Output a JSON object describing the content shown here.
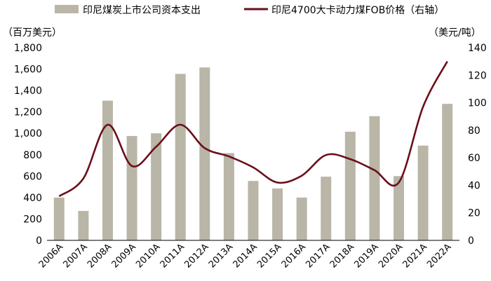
{
  "chart_data": {
    "type": "bar+line",
    "categories": [
      "2006A",
      "2007A",
      "2008A",
      "2009A",
      "2010A",
      "2011A",
      "2012A",
      "2013A",
      "2014A",
      "2015A",
      "2016A",
      "2017A",
      "2018A",
      "2019A",
      "2020A",
      "2021A",
      "2022A"
    ],
    "series": [
      {
        "name": "印尼煤炭上市公司资本支出",
        "type": "bar",
        "axis": "left",
        "color": "#b9b6a7",
        "values": [
          400,
          275,
          1305,
          975,
          1000,
          1555,
          1615,
          815,
          555,
          485,
          400,
          595,
          1015,
          1160,
          600,
          885,
          1275
        ]
      },
      {
        "name": "印尼4700大卡动力煤FOB价格（右轴）",
        "type": "line",
        "axis": "right",
        "color": "#6b0f1a",
        "values": [
          32,
          45,
          84,
          54,
          68,
          84,
          67,
          61,
          53,
          42,
          47,
          62,
          59,
          51,
          42,
          97,
          130
        ]
      }
    ],
    "y_left": {
      "label": "（百万美元）",
      "min": 0,
      "max": 1800,
      "step": 200,
      "tick_labels": [
        "0",
        "200",
        "400",
        "600",
        "800",
        "1,000",
        "1,200",
        "1,400",
        "1,600",
        "1,800"
      ]
    },
    "y_right": {
      "label": "（美元/吨）",
      "min": 0,
      "max": 140,
      "step": 20,
      "tick_labels": [
        "0",
        "20",
        "40",
        "60",
        "80",
        "100",
        "120",
        "140"
      ]
    },
    "legend_position": "top"
  }
}
